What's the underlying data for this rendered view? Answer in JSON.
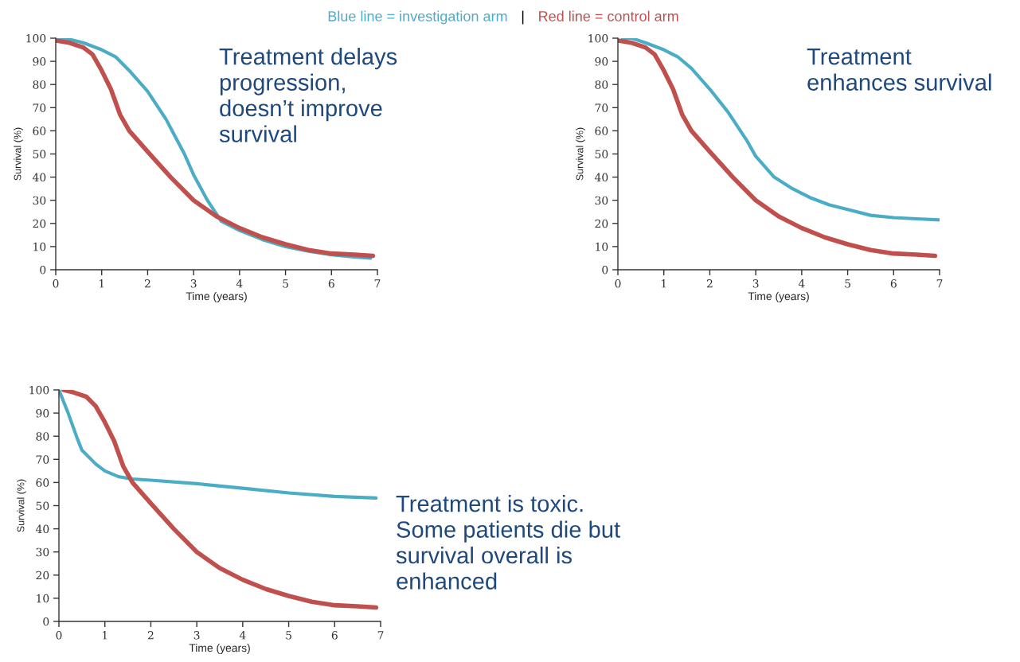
{
  "chart_data": [
    {
      "type": "line",
      "xlabel": "Time (years)",
      "ylabel": "Survival (%)",
      "xlim": [
        0,
        7
      ],
      "ylim": [
        0,
        100
      ],
      "xticks": [
        0,
        1,
        2,
        3,
        4,
        5,
        6,
        7
      ],
      "yticks": [
        0,
        10,
        20,
        30,
        40,
        50,
        60,
        70,
        80,
        90,
        100
      ],
      "grid": false,
      "legend": false,
      "marker": "none",
      "line_style": "solid",
      "annotations": [
        "Blue line = investigation arm",
        "|",
        "Red line = control arm",
        "Treatment delays\nprogression,\ndoesn’t improve\nsurvival"
      ],
      "series": [
        {
          "color": "#4bacc6",
          "x": [
            0,
            0.3,
            0.6,
            1.0,
            1.3,
            1.6,
            2.0,
            2.4,
            2.8,
            3.0,
            3.3,
            3.6,
            4.0,
            4.5,
            5.0,
            5.5,
            6.0,
            6.5,
            6.85
          ],
          "values": [
            100,
            99.5,
            98,
            95,
            92,
            86,
            77,
            65,
            50,
            41,
            30,
            21,
            17,
            13,
            10,
            8,
            6.5,
            5.5,
            5
          ]
        },
        {
          "color": "#c0504d",
          "x": [
            0,
            0.3,
            0.6,
            0.8,
            1.0,
            1.2,
            1.4,
            1.6,
            2.0,
            2.5,
            3.0,
            3.5,
            4.0,
            4.5,
            5.0,
            5.5,
            6.0,
            6.5,
            6.9
          ],
          "values": [
            99,
            98,
            96,
            93,
            86,
            78,
            67,
            60,
            51,
            40,
            30,
            23,
            18,
            14,
            11,
            8.5,
            7,
            6.5,
            6
          ]
        }
      ]
    },
    {
      "type": "line",
      "xlabel": "Time (years)",
      "ylabel": "Survival (%)",
      "xlim": [
        0,
        7
      ],
      "ylim": [
        0,
        100
      ],
      "xticks": [
        0,
        1,
        2,
        3,
        4,
        5,
        6,
        7
      ],
      "yticks": [
        0,
        10,
        20,
        30,
        40,
        50,
        60,
        70,
        80,
        90,
        100
      ],
      "grid": false,
      "legend": false,
      "marker": "none",
      "line_style": "solid",
      "annotations": [
        "Treatment\nenhances survival"
      ],
      "series": [
        {
          "color": "#4bacc6",
          "x": [
            0.1,
            0.3,
            0.6,
            1.0,
            1.3,
            1.6,
            2.0,
            2.4,
            2.8,
            3.0,
            3.4,
            3.8,
            4.2,
            4.6,
            5.0,
            5.5,
            6.0,
            6.5,
            7.0
          ],
          "values": [
            100,
            100,
            98,
            95,
            92,
            87,
            78,
            68,
            56,
            49,
            40,
            35,
            31,
            28,
            26,
            23.5,
            22.5,
            22,
            21.5
          ]
        },
        {
          "color": "#c0504d",
          "x": [
            0,
            0.3,
            0.6,
            0.8,
            1.0,
            1.2,
            1.4,
            1.6,
            2.0,
            2.5,
            3.0,
            3.5,
            4.0,
            4.5,
            5.0,
            5.5,
            6.0,
            6.5,
            6.9
          ],
          "values": [
            99,
            98,
            96,
            93,
            86,
            78,
            67,
            60,
            51,
            40,
            30,
            23,
            18,
            14,
            11,
            8.5,
            7,
            6.5,
            6
          ]
        }
      ]
    },
    {
      "type": "line",
      "xlabel": "Time (years)",
      "ylabel": "Survival (%)",
      "xlim": [
        0,
        7
      ],
      "ylim": [
        0,
        100
      ],
      "xticks": [
        0,
        1,
        2,
        3,
        4,
        5,
        6,
        7
      ],
      "yticks": [
        0,
        10,
        20,
        30,
        40,
        50,
        60,
        70,
        80,
        90,
        100
      ],
      "grid": false,
      "legend": false,
      "marker": "none",
      "line_style": "solid",
      "annotations": [
        "Treatment is toxic.\nSome patients die but\nsurvival overall is\nenhanced"
      ],
      "series": [
        {
          "color": "#4bacc6",
          "x": [
            0,
            0.2,
            0.4,
            0.5,
            0.8,
            1.0,
            1.3,
            1.6,
            2.0,
            3.0,
            4.0,
            5.0,
            6.0,
            6.9
          ],
          "values": [
            100,
            90,
            79,
            74,
            68,
            65,
            62.5,
            61.5,
            61,
            59.5,
            57.5,
            55.5,
            54,
            53.3
          ]
        },
        {
          "color": "#c0504d",
          "x": [
            0.1,
            0.3,
            0.6,
            0.8,
            1.0,
            1.2,
            1.4,
            1.6,
            2.0,
            2.5,
            3.0,
            3.5,
            4.0,
            4.5,
            5.0,
            5.5,
            6.0,
            6.5,
            6.9
          ],
          "values": [
            100,
            99,
            97,
            93,
            86,
            78,
            67,
            60,
            51,
            40,
            30,
            23,
            18,
            14,
            11,
            8.5,
            7,
            6.5,
            6
          ]
        }
      ]
    }
  ]
}
